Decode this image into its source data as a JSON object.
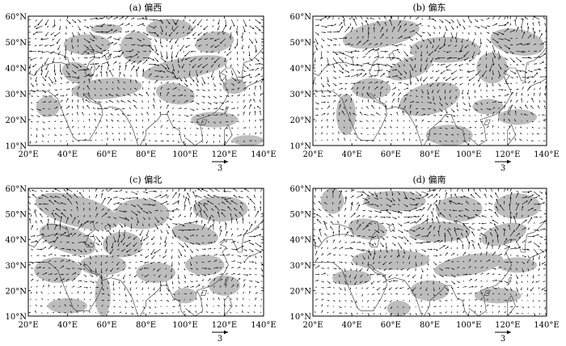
{
  "figure": {
    "panels": [
      {
        "id": "a",
        "title": "(a) 偏西",
        "vector_seed": 11
      },
      {
        "id": "b",
        "title": "(b) 偏东",
        "vector_seed": 23
      },
      {
        "id": "c",
        "title": "(c) 偏北",
        "vector_seed": 37
      },
      {
        "id": "d",
        "title": "(d) 偏南",
        "vector_seed": 53
      }
    ],
    "x_ticks": [
      "20°E",
      "40°E",
      "60°E",
      "80°E",
      "100°E",
      "120°E",
      "140°E"
    ],
    "y_ticks": [
      "60°N",
      "50°N",
      "40°N",
      "30°N",
      "20°N",
      "10°N"
    ],
    "lon_range": [
      20,
      140
    ],
    "lat_range": [
      10,
      60
    ],
    "reference_vector_label": "3",
    "shading_color": "#bdbdbd",
    "arrow_color": "#000000"
  }
}
